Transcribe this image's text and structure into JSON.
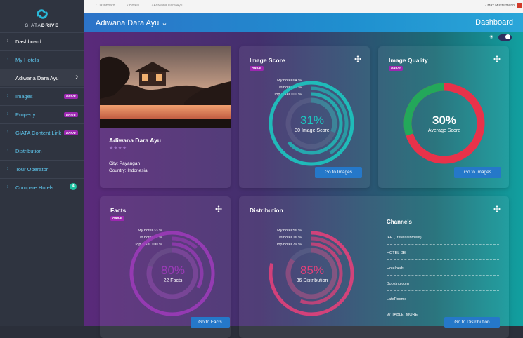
{
  "brand": {
    "name_light": "GIATA",
    "name_bold": "DRIVE"
  },
  "breadcrumb": [
    "Dashboard",
    "Hotels",
    "Adiwana Dara Ayu"
  ],
  "user": {
    "name": "Max Mustermann"
  },
  "header": {
    "hotel": "Adiwana Dara Ayu",
    "chevron": "⌄",
    "title": "Dashboard"
  },
  "sidebar": {
    "items": [
      {
        "label": "Dashboard"
      },
      {
        "label": "My Hotels"
      },
      {
        "label": "Adiwana Dara Ayu"
      },
      {
        "label": "Images",
        "badge": "DRIVE"
      },
      {
        "label": "Property",
        "badge": "DRIVE"
      },
      {
        "label": "GIATA Content Link",
        "badge": "DRIVE"
      },
      {
        "label": "Distribution"
      },
      {
        "label": "Tour Operator"
      },
      {
        "label": "Compare Hotels",
        "count": "4"
      }
    ]
  },
  "hotel_card": {
    "name": "Adiwana Dara Ayu",
    "stars": "★★★★",
    "city": "City: Payangan",
    "country": "Country: Indonesia"
  },
  "image_score": {
    "title": "Image Score",
    "badge": "DRIVE",
    "my_hotel": "My hotel 64 %",
    "avg_hotel": "Ø hotel 41 %",
    "top_hotel": "Top hotel 100 %",
    "percent": "31%",
    "label": "30 Image Score",
    "button": "Go to Images",
    "my_hotel_value": 0.64,
    "avg_hotel_value": 0.41,
    "top_hotel_value": 1.0,
    "score_value": 0.31,
    "color": "#1cc7c0"
  },
  "image_quality": {
    "title": "Image Quality",
    "badge": "DRIVE",
    "percent": "30%",
    "label": "Average Score",
    "button": "Go to Images",
    "value": 0.3,
    "color_good": "#23a85a",
    "color_bad": "#e8324a"
  },
  "facts": {
    "title": "Facts",
    "badge": "DRIVE",
    "my_hotel": "My hotel 33 %",
    "avg_hotel": "Ø hotel 12 %",
    "top_hotel": "Top hotel 100 %",
    "percent": "80%",
    "label": "22 Facts",
    "button": "Go to Facts",
    "my_hotel_value": 0.33,
    "avg_hotel_value": 0.12,
    "top_hotel_value": 1.0,
    "score_value": 0.8,
    "color": "#9b3bb8"
  },
  "distribution": {
    "title": "Distribution",
    "my_hotel": "My hotel 56 %",
    "avg_hotel": "Ø hotel 16 %",
    "top_hotel": "Top hotel 79 %",
    "percent": "85%",
    "label": "36 Distribution",
    "button": "Go to Distribution",
    "my_hotel_value": 0.56,
    "avg_hotel_value": 0.16,
    "top_hotel_value": 0.79,
    "score_value": 0.85,
    "color": "#e2407a",
    "channels_title": "Channels",
    "channels": [
      "IFF (Traveltainment)",
      "HOTEL DE",
      "Hotelbeds",
      "Booking.com",
      "LateRooms",
      "97 TABLE_MORE"
    ]
  },
  "icons": {
    "move": "move-icon",
    "sun": "sun-icon",
    "logo": "logo-icon"
  }
}
